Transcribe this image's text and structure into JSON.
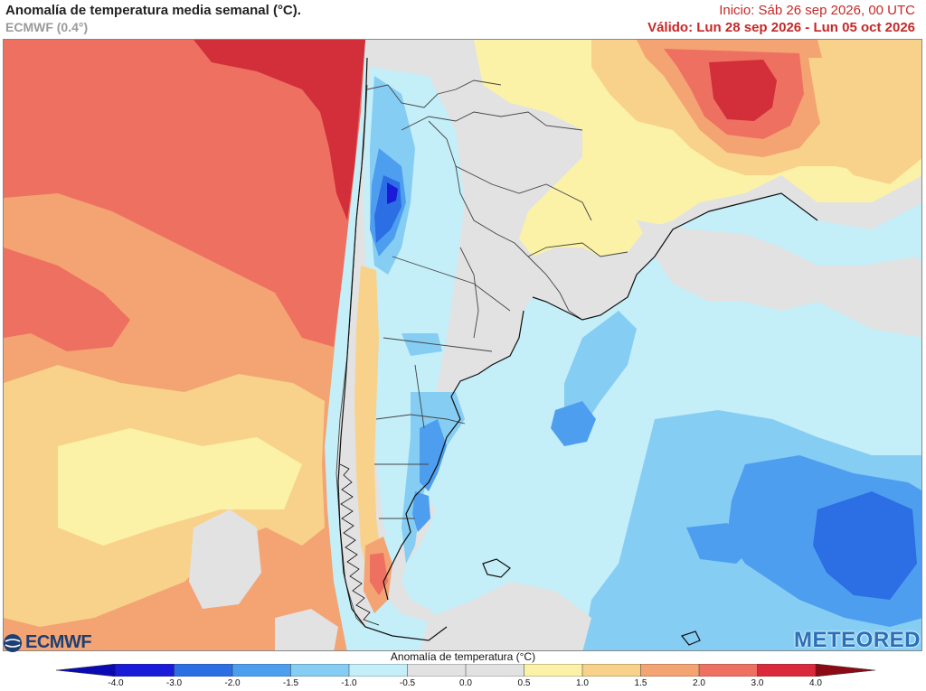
{
  "header": {
    "title": "Anomalía de temperatura media semanal (°C).",
    "model": "ECMWF (0.4°)",
    "init": "Inicio: Sáb 26 sep 2026, 00 UTC",
    "valid": "Válido: Lun 28 sep 2026 - Lun 05 oct 2026"
  },
  "logos": {
    "left": "ECMWF",
    "right": "METEORED"
  },
  "colorbar": {
    "title": "Anomalía de temperatura (°C)",
    "ticks": [
      "-4.0",
      "-3.0",
      "-2.0",
      "-1.5",
      "-1.0",
      "-0.5",
      "0.0",
      "0.5",
      "1.0",
      "1.5",
      "2.0",
      "3.0",
      "4.0"
    ],
    "colors": [
      "#1a1ad9",
      "#2c6ee3",
      "#4e9ef0",
      "#86cdf4",
      "#c4eef8",
      "#e2e2e2",
      "#e2e2e2",
      "#fbf2a8",
      "#f8d28a",
      "#f4a373",
      "#ee7061",
      "#d9293a"
    ]
  },
  "colors": {
    "red_dark": "#d22f3a",
    "red": "#ee7061",
    "orange": "#f4a373",
    "yellow_orange": "#f8d28a",
    "yellow": "#fbf2a8",
    "gray": "#e2e2e2",
    "pale_cyan": "#c4eef8",
    "light_blue": "#86cdf4",
    "blue": "#4e9ef0",
    "deep_blue": "#2c6ee3",
    "brand_meteored": "#2a6fb8",
    "brand_ecmwf": "#1d3f74",
    "header_red": "#c62828"
  }
}
